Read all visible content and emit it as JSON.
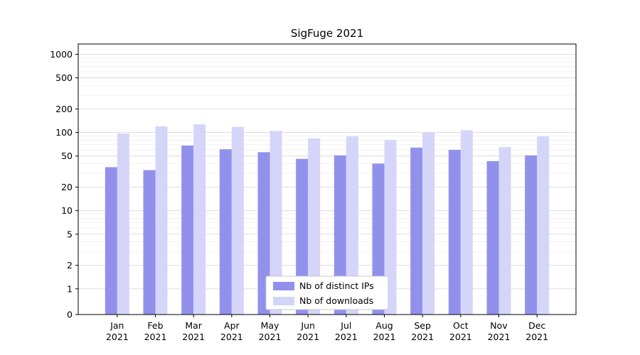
{
  "title": "SigFuge 2021",
  "chart_data": {
    "type": "bar",
    "title": "SigFuge 2021",
    "yscale": "symlog",
    "grid": true,
    "legend_position": "lower center",
    "ylim": [
      0,
      1000
    ],
    "yticks": [
      0,
      1,
      2,
      5,
      10,
      20,
      50,
      100,
      200,
      500,
      1000
    ],
    "categories": [
      {
        "month": "Jan",
        "year": "2021"
      },
      {
        "month": "Feb",
        "year": "2021"
      },
      {
        "month": "Mar",
        "year": "2021"
      },
      {
        "month": "Apr",
        "year": "2021"
      },
      {
        "month": "May",
        "year": "2021"
      },
      {
        "month": "Jun",
        "year": "2021"
      },
      {
        "month": "Jul",
        "year": "2021"
      },
      {
        "month": "Aug",
        "year": "2021"
      },
      {
        "month": "Sep",
        "year": "2021"
      },
      {
        "month": "Oct",
        "year": "2021"
      },
      {
        "month": "Nov",
        "year": "2021"
      },
      {
        "month": "Dec",
        "year": "2021"
      }
    ],
    "series": [
      {
        "name": "Nb of distinct IPs",
        "color": "#9191ec",
        "values": [
          36,
          33,
          68,
          61,
          56,
          46,
          51,
          40,
          64,
          60,
          43,
          51
        ]
      },
      {
        "name": "Nb of downloads",
        "color": "#d5d5fa",
        "values": [
          97,
          120,
          127,
          118,
          105,
          84,
          89,
          80,
          101,
          107,
          65,
          89
        ]
      }
    ]
  }
}
